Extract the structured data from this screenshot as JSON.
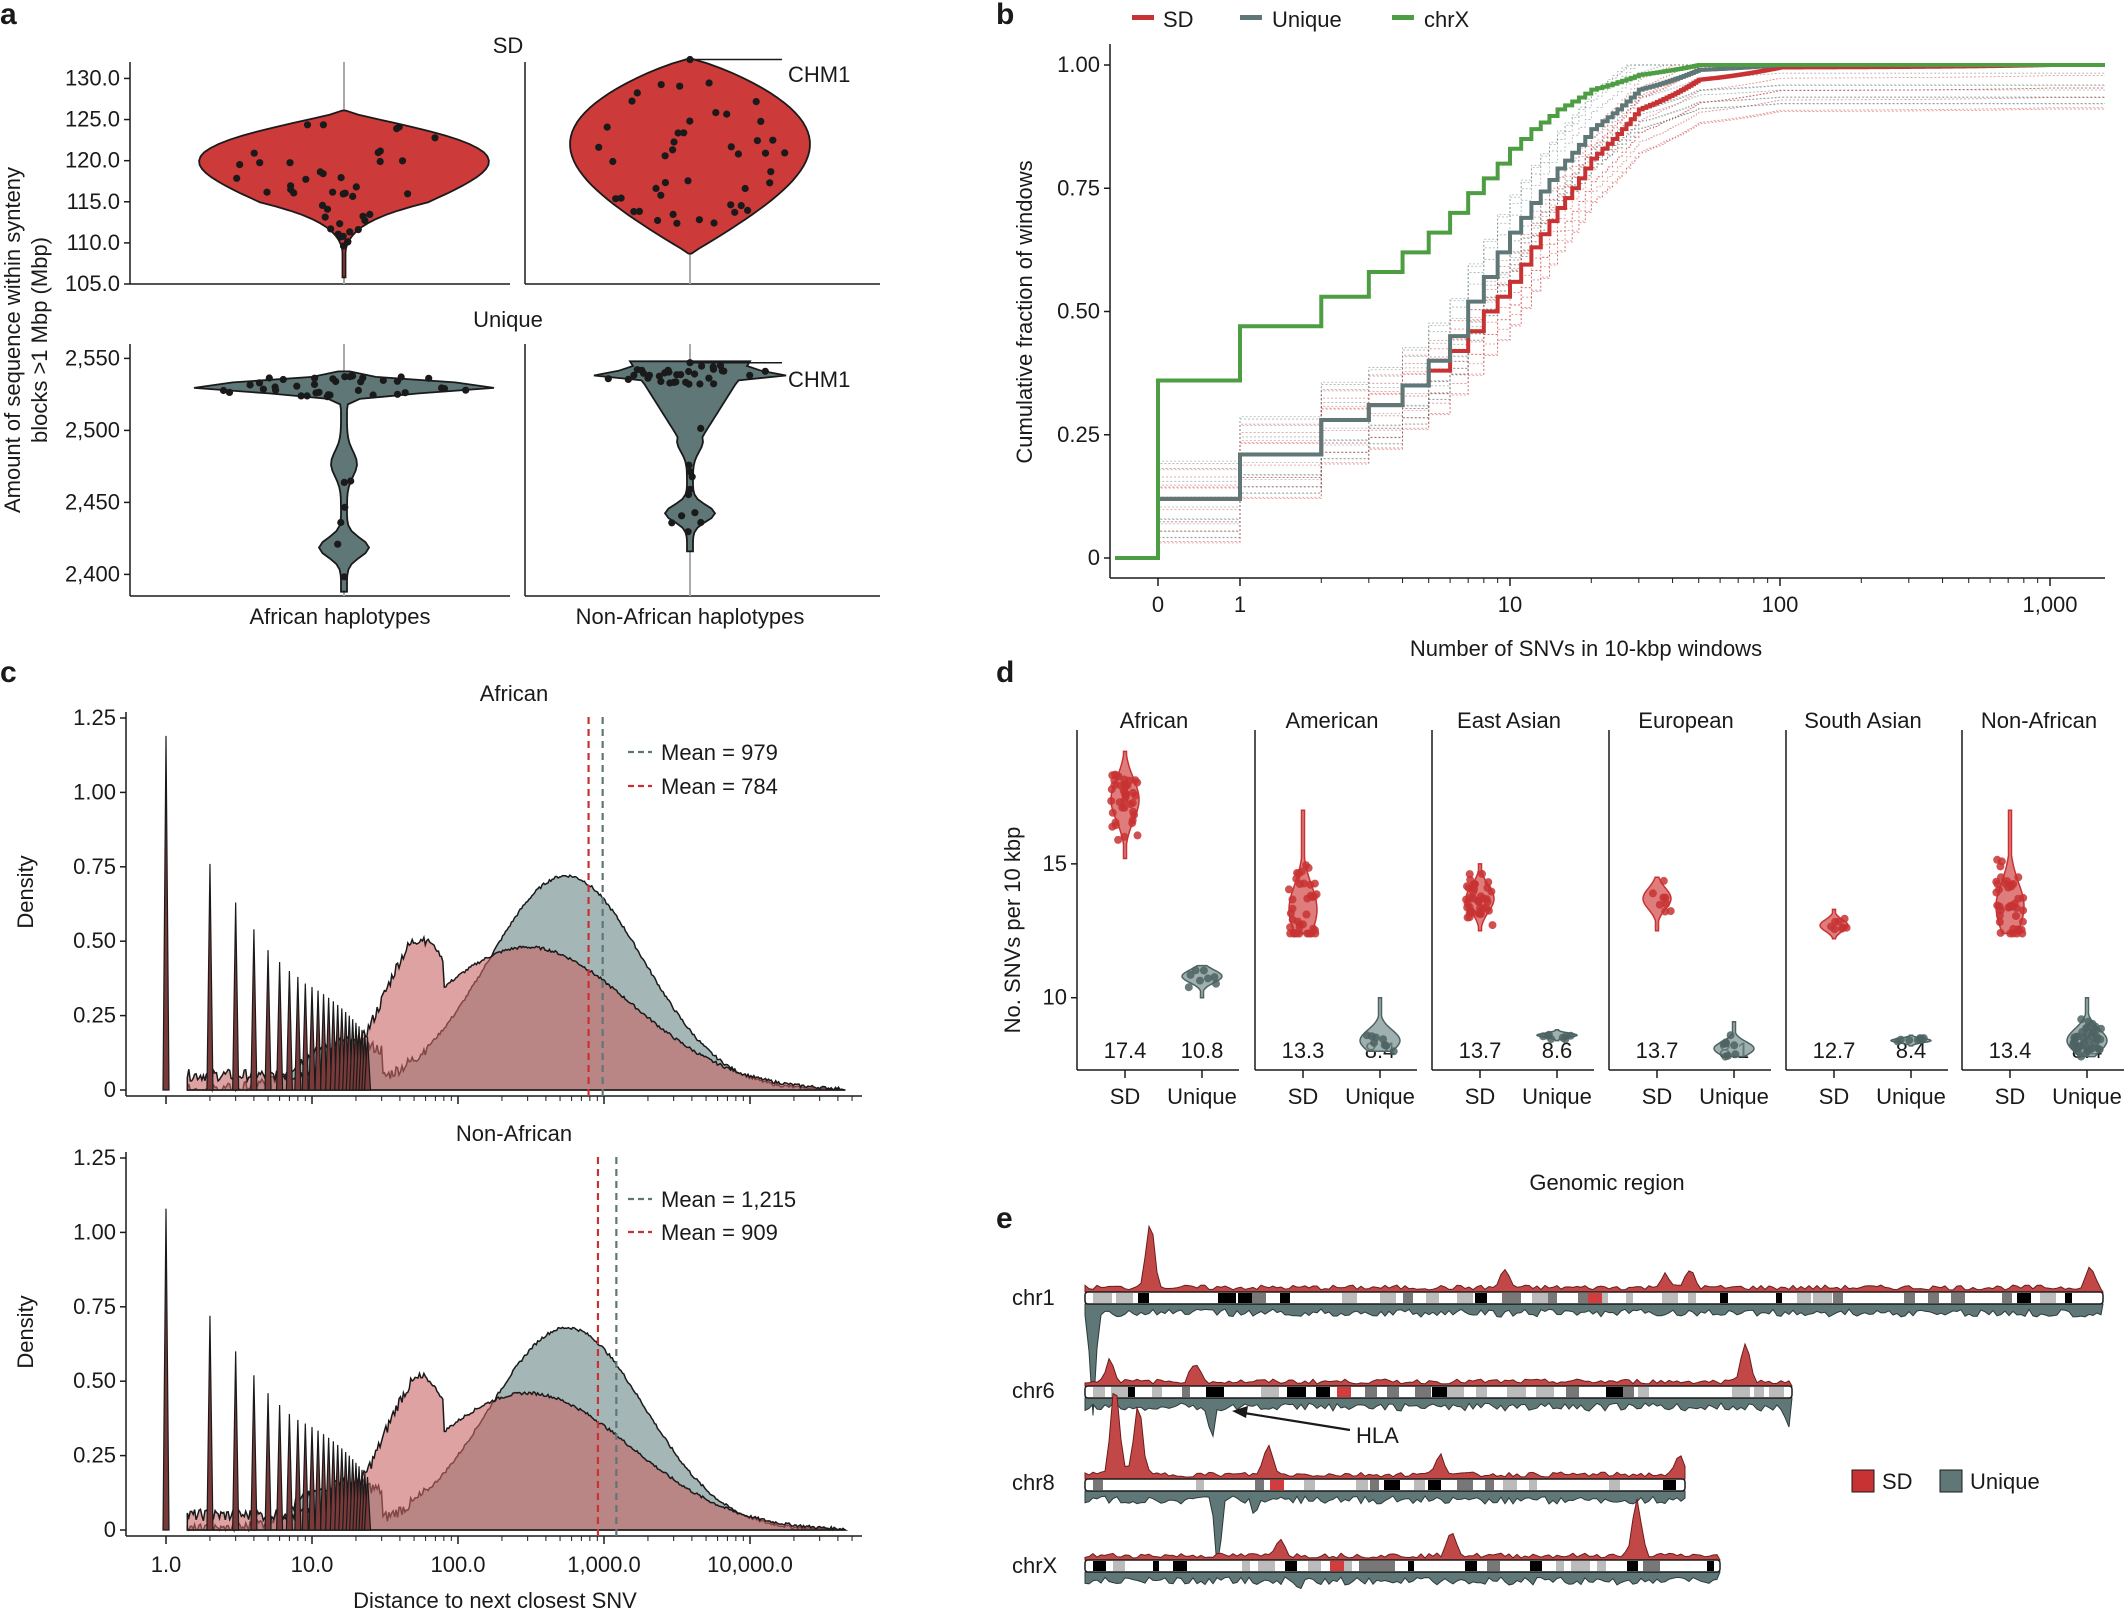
{
  "colors": {
    "sd": "#c83232",
    "sd_fill": "#cc3a3a",
    "unique": "#5f7777",
    "chrx": "#4d9e43",
    "dark": "#1a1a1a",
    "grey": "#aaaaaa"
  },
  "panel_letters": [
    "a",
    "b",
    "c",
    "d",
    "e"
  ],
  "chart_data": [
    {
      "panel": "a",
      "type": "violin",
      "ylabel": "Amount of sequence within synteny blocks >1 Mbp (Mbp)",
      "ylabel_lines": [
        "Amount of sequence within synteny",
        "blocks >1 Mbp (Mbp)"
      ],
      "xcategories": [
        "African haplotypes",
        "Non-African haplotypes"
      ],
      "facets": [
        {
          "title": "SD",
          "ylim": [
            105.0,
            132.0
          ],
          "yticks": [
            "130.0",
            "125.0",
            "120.0",
            "115.0",
            "110.0",
            "105.0"
          ],
          "ytick_values": [
            130,
            125,
            120,
            115,
            110,
            105
          ],
          "groups": [
            {
              "name": "African haplotypes",
              "min": 105.8,
              "max": 126.1,
              "median": 120.0
            },
            {
              "name": "Non-African haplotypes",
              "min": 108.7,
              "max": 132.4,
              "median": 120.5,
              "annotation": "CHM1",
              "annotation_value": 132.3
            }
          ]
        },
        {
          "title": "Unique",
          "ylim": [
            2385,
            2560
          ],
          "yticks": [
            "2,550",
            "2,500",
            "2,450",
            "2,400"
          ],
          "ytick_values": [
            2550,
            2500,
            2450,
            2400
          ],
          "groups": [
            {
              "name": "African haplotypes",
              "min": 2388,
              "max": 2541,
              "median": 2530
            },
            {
              "name": "Non-African haplotypes",
              "min": 2416,
              "max": 2548,
              "median": 2530,
              "annotation": "CHM1",
              "annotation_value": 2547
            }
          ]
        }
      ]
    },
    {
      "panel": "b",
      "type": "line",
      "xlabel": "Number of SNVs in 10-kbp windows",
      "ylabel": "Cumulative fraction of windows",
      "xscale": "pseudo-log",
      "xticks": [
        "0",
        "1",
        "10",
        "100",
        "1,000"
      ],
      "yticks": [
        "0",
        "0.25",
        "0.50",
        "0.75",
        "1.00"
      ],
      "ylim": [
        0,
        1
      ],
      "legend_position": "top",
      "series": [
        {
          "name": "SD",
          "x": [
            0,
            1,
            2,
            3,
            4,
            5,
            6,
            7,
            8,
            9,
            10,
            12,
            15,
            20,
            30,
            50,
            100,
            1000
          ],
          "y": [
            0.12,
            0.21,
            0.28,
            0.31,
            0.35,
            0.38,
            0.42,
            0.46,
            0.5,
            0.53,
            0.56,
            0.63,
            0.71,
            0.81,
            0.91,
            0.97,
            0.995,
            1.0
          ]
        },
        {
          "name": "Unique",
          "x": [
            0,
            1,
            2,
            3,
            4,
            5,
            6,
            7,
            8,
            9,
            10,
            12,
            15,
            20,
            30,
            50,
            100,
            1000
          ],
          "y": [
            0.12,
            0.21,
            0.28,
            0.31,
            0.35,
            0.4,
            0.45,
            0.52,
            0.57,
            0.62,
            0.66,
            0.72,
            0.79,
            0.87,
            0.95,
            0.99,
            1.0,
            1.0
          ]
        },
        {
          "name": "chrX",
          "x": [
            0,
            1,
            2,
            3,
            4,
            5,
            6,
            7,
            8,
            9,
            10,
            12,
            15,
            20,
            30,
            50,
            100,
            1000
          ],
          "y": [
            0.36,
            0.47,
            0.53,
            0.58,
            0.62,
            0.66,
            0.7,
            0.74,
            0.77,
            0.8,
            0.83,
            0.87,
            0.91,
            0.95,
            0.98,
            1.0,
            1.0,
            1.0
          ]
        }
      ]
    },
    {
      "panel": "c",
      "type": "area",
      "xlabel": "Distance to next closest SNV",
      "ylabel": "Density",
      "xscale": "log",
      "xticks": [
        "1.0",
        "10.0",
        "100.0",
        "1,000.0",
        "10,000.0"
      ],
      "yticks": [
        "0",
        "0.25",
        "0.50",
        "0.75",
        "1.00",
        "1.25"
      ],
      "ylim": [
        0,
        1.25
      ],
      "facets": [
        {
          "title": "African",
          "mean_unique_label": "Mean = 979",
          "mean_sd_label": "Mean = 784",
          "mean_unique": 979,
          "mean_sd": 784,
          "unique_peak": 0.72,
          "unique_peak_x": 550,
          "sd_peak": 0.48,
          "sd_peak_x": 300,
          "spike_heights": [
            1.19,
            0.76,
            0.63,
            0.54,
            0.47,
            0.43,
            0.4,
            0.38
          ]
        },
        {
          "title": "Non-African",
          "mean_unique_label": "Mean = 1,215",
          "mean_sd_label": "Mean = 909",
          "mean_unique": 1215,
          "mean_sd": 909,
          "unique_peak": 0.68,
          "unique_peak_x": 560,
          "sd_peak": 0.46,
          "sd_peak_x": 300,
          "spike_heights": [
            1.08,
            0.72,
            0.6,
            0.52,
            0.46,
            0.42,
            0.39,
            0.37
          ]
        }
      ]
    },
    {
      "panel": "d",
      "type": "violin",
      "xlabel": "Genomic region",
      "ylabel": "No. SNVs per 10 kbp",
      "yticks": [
        "15",
        "10"
      ],
      "ytick_values": [
        15,
        10
      ],
      "ylim": [
        7.3,
        20
      ],
      "xcategories": [
        "SD",
        "Unique"
      ],
      "facets": [
        {
          "title": "African",
          "sd_mean": 17.4,
          "unique_mean": 10.8,
          "sd_label": "17.4",
          "unique_label": "10.8",
          "sd_range": [
            15.2,
            19.2
          ],
          "unique_range": [
            10.0,
            11.2
          ]
        },
        {
          "title": "American",
          "sd_mean": 13.3,
          "unique_mean": 8.4,
          "sd_label": "13.3",
          "unique_label": "8.4",
          "sd_range": [
            12.4,
            17.0
          ],
          "unique_range": [
            8.0,
            10.0
          ]
        },
        {
          "title": "East Asian",
          "sd_mean": 13.7,
          "unique_mean": 8.6,
          "sd_label": "13.7",
          "unique_label": "8.6",
          "sd_range": [
            12.5,
            15.0
          ],
          "unique_range": [
            8.4,
            8.8
          ]
        },
        {
          "title": "European",
          "sd_mean": 13.7,
          "unique_mean": 8.1,
          "sd_label": "13.7",
          "unique_label": "8.1",
          "sd_range": [
            12.5,
            14.5
          ],
          "unique_range": [
            7.8,
            9.1
          ]
        },
        {
          "title": "South Asian",
          "sd_mean": 12.7,
          "unique_mean": 8.4,
          "sd_label": "12.7",
          "unique_label": "8.4",
          "sd_range": [
            12.2,
            13.3
          ],
          "unique_range": [
            8.2,
            8.6
          ]
        },
        {
          "title": "Non-African",
          "sd_mean": 13.4,
          "unique_mean": 8.4,
          "sd_label": "13.4",
          "unique_label": "8.4",
          "sd_range": [
            12.4,
            17.0
          ],
          "unique_range": [
            7.8,
            10.0
          ]
        }
      ]
    },
    {
      "panel": "e",
      "type": "area",
      "chromosomes": [
        "chr1",
        "chr6",
        "chr8",
        "chrX"
      ],
      "annotation": "HLA",
      "legend": [
        "SD",
        "Unique"
      ]
    }
  ]
}
